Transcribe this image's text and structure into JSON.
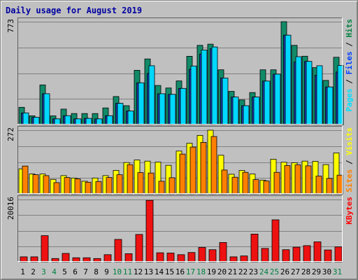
{
  "chart_data": {
    "type": "bar",
    "title": "Daily usage for August 2019",
    "days": [
      "1",
      "2",
      "3",
      "4",
      "5",
      "6",
      "7",
      "8",
      "9",
      "10",
      "11",
      "12",
      "13",
      "14",
      "15",
      "16",
      "17",
      "18",
      "19",
      "20",
      "21",
      "22",
      "23",
      "24",
      "25",
      "26",
      "27",
      "28",
      "29",
      "30",
      "31"
    ],
    "weekend_days": [
      "3",
      "4",
      "10",
      "11",
      "17",
      "18",
      "24",
      "25",
      "31"
    ],
    "panels": [
      {
        "id": "hits_files_pages",
        "max_label": "773",
        "ymax": 773,
        "right_label_parts": [
          {
            "text": "Pages",
            "color": "#00e0ff"
          },
          {
            "text": " / ",
            "color": "#000000"
          },
          {
            "text": "Files",
            "color": "#0040ff"
          },
          {
            "text": " / ",
            "color": "#000000"
          },
          {
            "text": "Hits",
            "color": "#008040"
          }
        ],
        "series": [
          {
            "name": "Hits",
            "color": "#128a68",
            "values": [
              130,
              66,
              298,
              65,
              116,
              83,
              83,
              83,
              125,
              211,
              142,
              408,
              493,
              294,
              275,
              328,
              513,
              595,
              604,
              412,
              250,
              185,
              241,
              412,
              412,
              773,
              595,
              514,
              428,
              332,
              506
            ]
          },
          {
            "name": "Files",
            "color": "#1a3cb0",
            "values": [
              88,
              55,
              232,
              43,
              67,
              43,
              47,
              43,
              67,
              160,
              102,
              314,
              385,
              232,
              227,
              272,
              415,
              530,
              570,
              350,
              207,
              142,
              207,
              327,
              379,
              672,
              470,
              475,
              371,
              283,
              395
            ]
          },
          {
            "name": "Pages",
            "color": "#00d8ff",
            "values": [
              88,
              55,
              232,
              43,
              67,
              43,
              47,
              43,
              67,
              160,
              102,
              314,
              442,
              232,
              227,
              272,
              440,
              560,
              583,
              350,
              207,
              142,
              207,
              327,
              379,
              672,
              510,
              475,
              442,
              283,
              445
            ]
          }
        ]
      },
      {
        "id": "visits_sites",
        "max_label": "272",
        "ymax": 272,
        "right_label_parts": [
          {
            "text": "Sites",
            "color": "#ff8000"
          },
          {
            "text": " / ",
            "color": "#000000"
          },
          {
            "text": "Visits",
            "color": "#ffff00"
          }
        ],
        "series": [
          {
            "name": "Visits",
            "color": "#ffff00",
            "values": [
              107,
              85,
              85,
              62,
              78,
              68,
              54,
              68,
              78,
              100,
              134,
              145,
              140,
              136,
              122,
              183,
              216,
              250,
              272,
              165,
              84,
              100,
              85,
              59,
              148,
              135,
              133,
              140,
              139,
              125,
              175
            ]
          },
          {
            "name": "Sites",
            "color": "#ff8000",
            "values": [
              119,
              82,
              78,
              48,
              70,
              64,
              50,
              53,
              70,
              82,
              125,
              91,
              89,
              54,
              69,
              170,
              200,
              220,
              245,
              102,
              71,
              92,
              61,
              55,
              92,
              121,
              124,
              120,
              76,
              66,
              80
            ]
          }
        ]
      },
      {
        "id": "kbytes",
        "max_label": "20016",
        "ymax": 20016,
        "right_label_parts": [
          {
            "text": "KBytes",
            "color": "#ff0000"
          }
        ],
        "series": [
          {
            "name": "KBytes",
            "color": "#ee1111",
            "values": [
              1600,
              1600,
              8400,
              1050,
              2700,
              1300,
              1300,
              1060,
              2300,
              7200,
              2600,
              8800,
              19750,
              2900,
              2800,
              2300,
              3000,
              4600,
              3900,
              6200,
              1600,
              1900,
              8900,
              4300,
              13500,
              3900,
              4700,
              5200,
              6400,
              3800,
              4800
            ]
          }
        ]
      }
    ]
  }
}
